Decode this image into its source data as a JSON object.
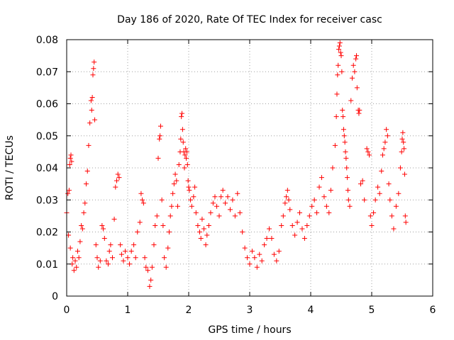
{
  "chart_data": {
    "type": "scatter",
    "title": "Day 186 of 2020, Rate Of TEC Index for receiver casc",
    "xlabel": "GPS time / hours",
    "ylabel": "ROTI / TECUs",
    "xlim": [
      0,
      6
    ],
    "ylim": [
      0,
      0.08
    ],
    "xticks": [
      0,
      1,
      2,
      3,
      4,
      5,
      6
    ],
    "xtick_labels": [
      "0",
      "1",
      "2",
      "3",
      "4",
      "5",
      "6"
    ],
    "yticks": [
      0,
      0.01,
      0.02,
      0.03,
      0.04,
      0.05,
      0.06,
      0.07,
      0.08
    ],
    "ytick_labels": [
      "0",
      "0.01",
      "0.02",
      "0.03",
      "0.04",
      "0.05",
      "0.06",
      "0.07",
      "0.08"
    ],
    "grid": true,
    "marker": "+",
    "color": "#ff0000",
    "series": [
      {
        "name": "ROTI",
        "points": [
          [
            0.0,
            0.026
          ],
          [
            0.02,
            0.032
          ],
          [
            0.04,
            0.033
          ],
          [
            0.05,
            0.041
          ],
          [
            0.06,
            0.043
          ],
          [
            0.07,
            0.044
          ],
          [
            0.08,
            0.042
          ],
          [
            0.03,
            0.019
          ],
          [
            0.06,
            0.015
          ],
          [
            0.09,
            0.01
          ],
          [
            0.1,
            0.012
          ],
          [
            0.12,
            0.008
          ],
          [
            0.14,
            0.011
          ],
          [
            0.16,
            0.009
          ],
          [
            0.18,
            0.014
          ],
          [
            0.2,
            0.012
          ],
          [
            0.22,
            0.017
          ],
          [
            0.24,
            0.022
          ],
          [
            0.26,
            0.021
          ],
          [
            0.28,
            0.026
          ],
          [
            0.3,
            0.029
          ],
          [
            0.32,
            0.035
          ],
          [
            0.34,
            0.039
          ],
          [
            0.36,
            0.047
          ],
          [
            0.38,
            0.054
          ],
          [
            0.4,
            0.061
          ],
          [
            0.41,
            0.058
          ],
          [
            0.42,
            0.062
          ],
          [
            0.43,
            0.069
          ],
          [
            0.44,
            0.071
          ],
          [
            0.45,
            0.073
          ],
          [
            0.46,
            0.055
          ],
          [
            0.48,
            0.016
          ],
          [
            0.5,
            0.012
          ],
          [
            0.52,
            0.009
          ],
          [
            0.55,
            0.011
          ],
          [
            0.58,
            0.022
          ],
          [
            0.6,
            0.021
          ],
          [
            0.62,
            0.018
          ],
          [
            0.65,
            0.011
          ],
          [
            0.68,
            0.01
          ],
          [
            0.7,
            0.014
          ],
          [
            0.72,
            0.016
          ],
          [
            0.75,
            0.012
          ],
          [
            0.78,
            0.024
          ],
          [
            0.8,
            0.034
          ],
          [
            0.82,
            0.036
          ],
          [
            0.84,
            0.038
          ],
          [
            0.86,
            0.037
          ],
          [
            0.88,
            0.016
          ],
          [
            0.9,
            0.013
          ],
          [
            0.93,
            0.011
          ],
          [
            0.96,
            0.014
          ],
          [
            1.0,
            0.012
          ],
          [
            1.03,
            0.01
          ],
          [
            1.06,
            0.014
          ],
          [
            1.1,
            0.016
          ],
          [
            1.13,
            0.012
          ],
          [
            1.16,
            0.02
          ],
          [
            1.2,
            0.023
          ],
          [
            1.22,
            0.032
          ],
          [
            1.24,
            0.03
          ],
          [
            1.26,
            0.029
          ],
          [
            1.28,
            0.012
          ],
          [
            1.3,
            0.009
          ],
          [
            1.33,
            0.008
          ],
          [
            1.36,
            0.003
          ],
          [
            1.38,
            0.005
          ],
          [
            1.4,
            0.009
          ],
          [
            1.43,
            0.016
          ],
          [
            1.45,
            0.022
          ],
          [
            1.48,
            0.025
          ],
          [
            1.5,
            0.043
          ],
          [
            1.52,
            0.049
          ],
          [
            1.53,
            0.05
          ],
          [
            1.54,
            0.053
          ],
          [
            1.56,
            0.03
          ],
          [
            1.58,
            0.022
          ],
          [
            1.6,
            0.012
          ],
          [
            1.63,
            0.009
          ],
          [
            1.66,
            0.015
          ],
          [
            1.68,
            0.02
          ],
          [
            1.7,
            0.025
          ],
          [
            1.72,
            0.028
          ],
          [
            1.74,
            0.032
          ],
          [
            1.76,
            0.035
          ],
          [
            1.78,
            0.038
          ],
          [
            1.8,
            0.036
          ],
          [
            1.82,
            0.028
          ],
          [
            1.84,
            0.041
          ],
          [
            1.86,
            0.045
          ],
          [
            1.87,
            0.049
          ],
          [
            1.88,
            0.056
          ],
          [
            1.89,
            0.057
          ],
          [
            1.9,
            0.052
          ],
          [
            1.91,
            0.048
          ],
          [
            1.92,
            0.045
          ],
          [
            1.93,
            0.04
          ],
          [
            1.94,
            0.044
          ],
          [
            1.95,
            0.046
          ],
          [
            1.96,
            0.043
          ],
          [
            1.97,
            0.045
          ],
          [
            1.98,
            0.041
          ],
          [
            1.99,
            0.036
          ],
          [
            2.0,
            0.034
          ],
          [
            2.01,
            0.033
          ],
          [
            2.03,
            0.03
          ],
          [
            2.05,
            0.028
          ],
          [
            2.08,
            0.031
          ],
          [
            2.1,
            0.034
          ],
          [
            2.12,
            0.026
          ],
          [
            2.15,
            0.022
          ],
          [
            2.18,
            0.02
          ],
          [
            2.2,
            0.018
          ],
          [
            2.22,
            0.024
          ],
          [
            2.25,
            0.021
          ],
          [
            2.28,
            0.016
          ],
          [
            2.3,
            0.019
          ],
          [
            2.33,
            0.022
          ],
          [
            2.36,
            0.026
          ],
          [
            2.4,
            0.029
          ],
          [
            2.43,
            0.031
          ],
          [
            2.46,
            0.028
          ],
          [
            2.5,
            0.025
          ],
          [
            2.53,
            0.031
          ],
          [
            2.56,
            0.033
          ],
          [
            2.6,
            0.029
          ],
          [
            2.64,
            0.031
          ],
          [
            2.68,
            0.027
          ],
          [
            2.72,
            0.03
          ],
          [
            2.76,
            0.025
          ],
          [
            2.8,
            0.032
          ],
          [
            2.84,
            0.026
          ],
          [
            2.88,
            0.02
          ],
          [
            2.92,
            0.015
          ],
          [
            2.96,
            0.012
          ],
          [
            3.0,
            0.01
          ],
          [
            3.04,
            0.014
          ],
          [
            3.08,
            0.012
          ],
          [
            3.12,
            0.009
          ],
          [
            3.16,
            0.013
          ],
          [
            3.2,
            0.011
          ],
          [
            3.24,
            0.016
          ],
          [
            3.28,
            0.018
          ],
          [
            3.32,
            0.021
          ],
          [
            3.36,
            0.018
          ],
          [
            3.4,
            0.013
          ],
          [
            3.44,
            0.011
          ],
          [
            3.48,
            0.014
          ],
          [
            3.52,
            0.022
          ],
          [
            3.55,
            0.025
          ],
          [
            3.58,
            0.029
          ],
          [
            3.6,
            0.031
          ],
          [
            3.62,
            0.033
          ],
          [
            3.64,
            0.03
          ],
          [
            3.66,
            0.027
          ],
          [
            3.7,
            0.022
          ],
          [
            3.74,
            0.019
          ],
          [
            3.78,
            0.023
          ],
          [
            3.82,
            0.026
          ],
          [
            3.86,
            0.021
          ],
          [
            3.9,
            0.018
          ],
          [
            3.94,
            0.022
          ],
          [
            3.98,
            0.025
          ],
          [
            4.02,
            0.028
          ],
          [
            4.06,
            0.03
          ],
          [
            4.1,
            0.026
          ],
          [
            4.14,
            0.034
          ],
          [
            4.18,
            0.037
          ],
          [
            4.22,
            0.031
          ],
          [
            4.26,
            0.028
          ],
          [
            4.3,
            0.026
          ],
          [
            4.33,
            0.033
          ],
          [
            4.36,
            0.04
          ],
          [
            4.4,
            0.047
          ],
          [
            4.42,
            0.056
          ],
          [
            4.43,
            0.063
          ],
          [
            4.44,
            0.069
          ],
          [
            4.45,
            0.072
          ],
          [
            4.46,
            0.077
          ],
          [
            4.47,
            0.078
          ],
          [
            4.48,
            0.079
          ],
          [
            4.49,
            0.076
          ],
          [
            4.5,
            0.075
          ],
          [
            4.51,
            0.07
          ],
          [
            4.52,
            0.058
          ],
          [
            4.53,
            0.056
          ],
          [
            4.54,
            0.052
          ],
          [
            4.55,
            0.05
          ],
          [
            4.56,
            0.048
          ],
          [
            4.57,
            0.045
          ],
          [
            4.58,
            0.043
          ],
          [
            4.59,
            0.04
          ],
          [
            4.6,
            0.037
          ],
          [
            4.61,
            0.033
          ],
          [
            4.62,
            0.03
          ],
          [
            4.64,
            0.028
          ],
          [
            4.66,
            0.061
          ],
          [
            4.68,
            0.068
          ],
          [
            4.7,
            0.072
          ],
          [
            4.72,
            0.07
          ],
          [
            4.74,
            0.074
          ],
          [
            4.75,
            0.075
          ],
          [
            4.76,
            0.065
          ],
          [
            4.78,
            0.058
          ],
          [
            4.79,
            0.057
          ],
          [
            4.8,
            0.058
          ],
          [
            4.82,
            0.035
          ],
          [
            4.85,
            0.036
          ],
          [
            4.88,
            0.03
          ],
          [
            4.92,
            0.046
          ],
          [
            4.94,
            0.045
          ],
          [
            4.96,
            0.044
          ],
          [
            4.98,
            0.025
          ],
          [
            5.0,
            0.022
          ],
          [
            5.03,
            0.026
          ],
          [
            5.06,
            0.03
          ],
          [
            5.1,
            0.034
          ],
          [
            5.13,
            0.032
          ],
          [
            5.16,
            0.039
          ],
          [
            5.18,
            0.044
          ],
          [
            5.2,
            0.046
          ],
          [
            5.22,
            0.048
          ],
          [
            5.24,
            0.052
          ],
          [
            5.26,
            0.05
          ],
          [
            5.28,
            0.035
          ],
          [
            5.3,
            0.03
          ],
          [
            5.33,
            0.025
          ],
          [
            5.36,
            0.021
          ],
          [
            5.4,
            0.028
          ],
          [
            5.44,
            0.032
          ],
          [
            5.47,
            0.04
          ],
          [
            5.49,
            0.045
          ],
          [
            5.5,
            0.049
          ],
          [
            5.51,
            0.051
          ],
          [
            5.52,
            0.048
          ],
          [
            5.53,
            0.046
          ],
          [
            5.54,
            0.038
          ],
          [
            5.55,
            0.025
          ],
          [
            5.56,
            0.023
          ]
        ]
      }
    ]
  }
}
